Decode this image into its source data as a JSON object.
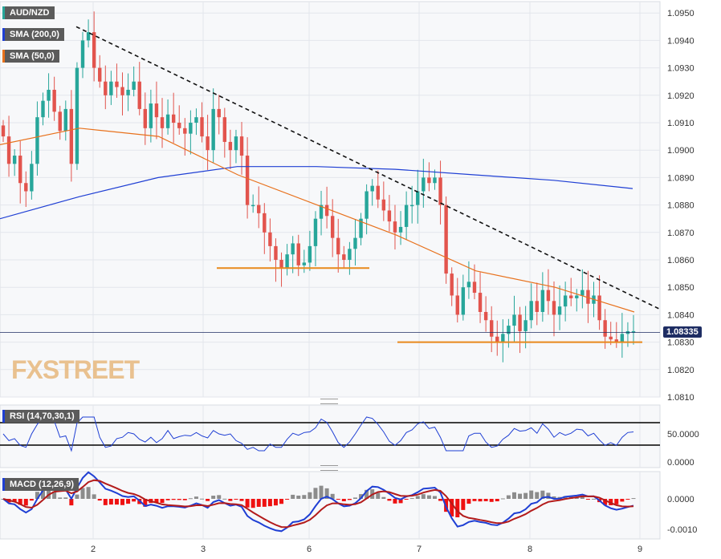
{
  "legend": {
    "pair": "AUD/NZD",
    "sma200": "SMA (200,0)",
    "sma50": "SMA (50,0)",
    "rsi": "RSI (14,70,30,1)",
    "macd": "MACD (12,26,9)"
  },
  "watermark": "FXSTREET",
  "last_price": "1.08335",
  "colors": {
    "bull": "#27a69a",
    "bear": "#e2544d",
    "sma200": "#1f3fd4",
    "sma50": "#e8711c",
    "support": "#e8891c",
    "trend": "#111111",
    "macd_line": "#1f3fd4",
    "signal_line": "#b31b1b",
    "hist_pos": "#8c8c8c",
    "hist_neg": "#ee1111",
    "rsi_line": "#1f3fd4"
  },
  "chart_data": [
    {
      "type": "candlestick",
      "title": "AUD/NZD",
      "x_ticks": [
        "2",
        "3",
        "6",
        "7",
        "8",
        "9"
      ],
      "y_ticks": [
        "1.0950",
        "1.0940",
        "1.0930",
        "1.0920",
        "1.0910",
        "1.0900",
        "1.0890",
        "1.0880",
        "1.0870",
        "1.0860",
        "1.0850",
        "1.0840",
        "1.0830",
        "1.0820",
        "1.0810"
      ],
      "ylim": [
        1.081,
        1.0955
      ],
      "close_path": [
        1.0905,
        1.0895,
        1.0898,
        1.0888,
        1.0885,
        1.0895,
        1.0912,
        1.0918,
        1.0922,
        1.0914,
        1.0907,
        1.0915,
        1.0895,
        1.093,
        1.094,
        1.0943,
        1.093,
        1.0925,
        1.092,
        1.0925,
        1.0923,
        1.092,
        1.0922,
        1.0925,
        1.0915,
        1.0908,
        1.0917,
        1.0912,
        1.0908,
        1.0913,
        1.091,
        1.0908,
        1.0906,
        1.091,
        1.0912,
        1.0905,
        1.09,
        1.0915,
        1.0912,
        1.0903,
        1.09,
        1.0905,
        1.0898,
        1.088,
        1.088,
        1.0877,
        1.087,
        1.0865,
        1.086,
        1.0857,
        1.0862,
        1.0866,
        1.0858,
        1.0859,
        1.0865,
        1.0875,
        1.088,
        1.0876,
        1.0868,
        1.0862,
        1.086,
        1.0864,
        1.0868,
        1.0875,
        1.0885,
        1.0887,
        1.0882,
        1.0878,
        1.0874,
        1.087,
        1.0872,
        1.088,
        1.088,
        1.0885,
        1.089,
        1.0888,
        1.089,
        1.088,
        1.0855,
        1.0847,
        1.084,
        1.085,
        1.0852,
        1.0848,
        1.0841,
        1.0838,
        1.0832,
        1.083,
        1.0833,
        1.0836,
        1.084,
        1.0834,
        1.0838,
        1.0845,
        1.0841,
        1.0849,
        1.0845,
        1.084,
        1.0843,
        1.0847,
        1.0846,
        1.0847,
        1.0849,
        1.0844,
        1.0847,
        1.0838,
        1.0832,
        1.0831,
        1.083,
        1.0833,
        1.0834,
        1.0834
      ],
      "sma200": [
        1.0875,
        1.0883,
        1.089,
        1.0894,
        1.0894,
        1.0893,
        1.0891,
        1.0889,
        1.0886
      ],
      "sma50": [
        1.0902,
        1.0908,
        1.0905,
        1.0891,
        1.088,
        1.0869,
        1.0856,
        1.085,
        1.0841
      ],
      "support_levels": [
        1.0857,
        1.083
      ],
      "trendline": [
        1.0945,
        1.0842
      ]
    },
    {
      "type": "line",
      "title": "RSI (14,70,30,1)",
      "y_ticks": [
        "50.0000",
        "0.0000"
      ],
      "ylim": [
        0,
        100
      ],
      "levels": [
        70,
        30
      ]
    },
    {
      "type": "bar",
      "title": "MACD (12,26,9)",
      "y_ticks": [
        "0.0000",
        "-0.0010"
      ],
      "ylim": [
        -0.0012,
        0.0008
      ]
    }
  ]
}
